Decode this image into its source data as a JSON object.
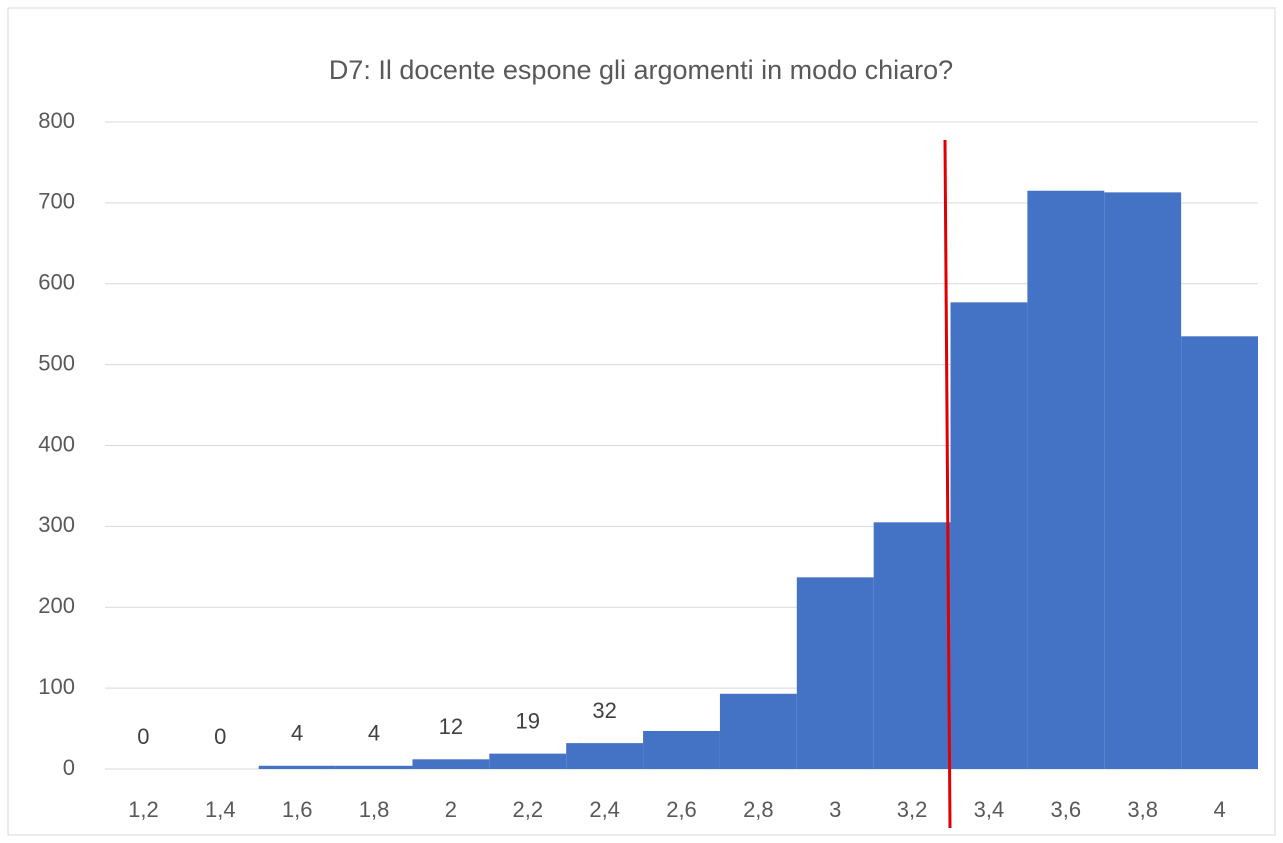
{
  "chart_data": {
    "type": "bar",
    "title": "D7: Il docente espone gli argomenti in modo chiaro?",
    "categories": [
      "1,2",
      "1,4",
      "1,6",
      "1,8",
      "2",
      "2,2",
      "2,4",
      "2,6",
      "2,8",
      "3",
      "3,2",
      "3,4",
      "3,6",
      "3,8",
      "4"
    ],
    "values": [
      0,
      0,
      4,
      4,
      12,
      19,
      32,
      47,
      93,
      237,
      305,
      577,
      715,
      713,
      535
    ],
    "value_labels": [
      "0",
      "0",
      "4",
      "4",
      "12",
      "19",
      "32",
      null,
      null,
      null,
      null,
      null,
      null,
      null,
      null
    ],
    "color": "#4472c4",
    "ylim": [
      0,
      800
    ],
    "yticks": [
      0,
      100,
      200,
      300,
      400,
      500,
      600,
      700,
      800
    ],
    "grid": true
  }
}
